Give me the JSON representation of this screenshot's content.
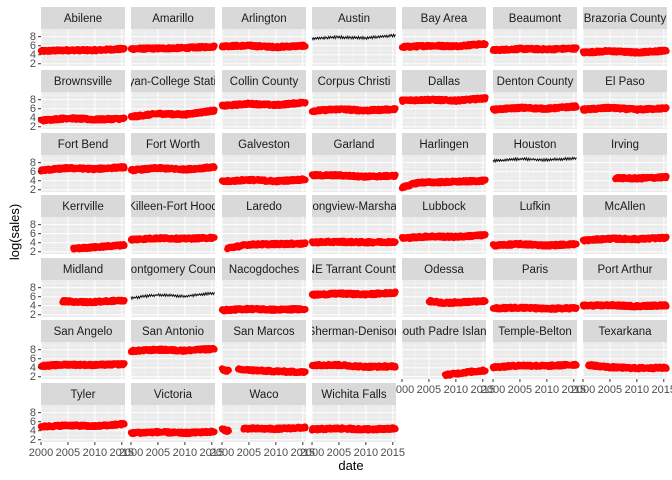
{
  "chart_data": {
    "type": "scatter",
    "facet_layout": "wrap",
    "ncol": 7,
    "xlabel": "date",
    "ylabel": "log(sales)",
    "xlim": [
      2000,
      2015.6
    ],
    "ylim": [
      1.5,
      9.7
    ],
    "x_ticks": [
      2000,
      2005,
      2010,
      2015
    ],
    "x_tick_labels": [
      "2000",
      "2005",
      "2010",
      "2015"
    ],
    "y_ticks": [
      2,
      4,
      6,
      8
    ],
    "y_tick_labels": [
      "2",
      "4",
      "6",
      "8"
    ],
    "grid": true,
    "legend": "none",
    "colors": {
      "points": "#ff0000",
      "line": "#000000",
      "panel_bg": "#ebebeb",
      "strip_bg": "#d9d9d9",
      "grid_major": "#ffffff"
    },
    "panels": [
      {
        "name": "Abilene",
        "style": "points",
        "x": [
          2000,
          2005,
          2010,
          2015.5
        ],
        "y": [
          4.8,
          5.0,
          5.0,
          5.3
        ]
      },
      {
        "name": "Amarillo",
        "style": "points",
        "x": [
          2000,
          2005,
          2010,
          2015.5
        ],
        "y": [
          5.3,
          5.4,
          5.5,
          5.8
        ]
      },
      {
        "name": "Arlington",
        "style": "points",
        "x": [
          2000,
          2005,
          2010,
          2015.5
        ],
        "y": [
          5.9,
          6.0,
          5.7,
          6.0
        ]
      },
      {
        "name": "Austin",
        "style": "line",
        "x": [
          2000,
          2005,
          2010,
          2015.5
        ],
        "y": [
          7.6,
          7.9,
          7.7,
          8.3
        ]
      },
      {
        "name": "Bay Area",
        "style": "points",
        "x": [
          2000,
          2005,
          2010,
          2015.5
        ],
        "y": [
          5.7,
          6.0,
          5.9,
          6.4
        ]
      },
      {
        "name": "Beaumont",
        "style": "points",
        "x": [
          2000,
          2005,
          2010,
          2015.5
        ],
        "y": [
          5.0,
          5.3,
          5.2,
          5.4
        ]
      },
      {
        "name": "Brazoria County",
        "style": "points",
        "x": [
          2000,
          2005,
          2010,
          2015.5
        ],
        "y": [
          4.5,
          4.8,
          4.5,
          4.9
        ]
      },
      {
        "name": "Brownsville",
        "style": "points",
        "x": [
          2000,
          2005,
          2010,
          2015.5
        ],
        "y": [
          3.4,
          3.9,
          3.6,
          3.8
        ]
      },
      {
        "name": "Bryan-College Station",
        "style": "points",
        "x": [
          2000,
          2005,
          2010,
          2015.5
        ],
        "y": [
          4.2,
          4.9,
          4.7,
          5.6
        ]
      },
      {
        "name": "Collin County",
        "style": "points",
        "x": [
          2000,
          2005,
          2010,
          2015.5
        ],
        "y": [
          6.6,
          7.1,
          6.8,
          7.4
        ]
      },
      {
        "name": "Corpus Christi",
        "style": "points",
        "x": [
          2000,
          2005,
          2010,
          2015.5
        ],
        "y": [
          5.5,
          5.9,
          5.6,
          5.9
        ]
      },
      {
        "name": "Dallas",
        "style": "points",
        "x": [
          2000,
          2005,
          2010,
          2015.5
        ],
        "y": [
          7.8,
          8.0,
          7.8,
          8.3
        ]
      },
      {
        "name": "Denton County",
        "style": "points",
        "x": [
          2000,
          2005,
          2010,
          2015.5
        ],
        "y": [
          5.8,
          6.2,
          6.0,
          6.5
        ]
      },
      {
        "name": "El Paso",
        "style": "points",
        "x": [
          2000,
          2005,
          2010,
          2015.5
        ],
        "y": [
          5.8,
          6.2,
          5.8,
          6.1
        ]
      },
      {
        "name": "Fort Bend",
        "style": "points",
        "x": [
          2000,
          2005,
          2010,
          2015.5
        ],
        "y": [
          6.3,
          6.8,
          6.6,
          7.0
        ]
      },
      {
        "name": "Fort Worth",
        "style": "points",
        "x": [
          2000,
          2005,
          2010,
          2015.5
        ],
        "y": [
          6.3,
          6.8,
          6.5,
          7.0
        ]
      },
      {
        "name": "Galveston",
        "style": "points",
        "x": [
          2000,
          2005,
          2010,
          2015.5
        ],
        "y": [
          3.8,
          4.2,
          3.9,
          4.3
        ]
      },
      {
        "name": "Garland",
        "style": "points",
        "x": [
          2000,
          2005,
          2010,
          2015.5
        ],
        "y": [
          5.2,
          5.2,
          4.9,
          5.1
        ]
      },
      {
        "name": "Harlingen",
        "style": "points",
        "x": [
          2000,
          2003,
          2008,
          2015.5
        ],
        "y": [
          2.5,
          3.6,
          3.7,
          4.0
        ]
      },
      {
        "name": "Houston",
        "style": "line",
        "x": [
          2000,
          2005,
          2010,
          2015.5
        ],
        "y": [
          8.4,
          8.8,
          8.6,
          9.0
        ]
      },
      {
        "name": "Irving",
        "style": "points",
        "x": [
          2006,
          2010,
          2015.5
        ],
        "y": [
          4.6,
          4.5,
          4.8
        ]
      },
      {
        "name": "Kerrville",
        "style": "points",
        "x": [
          2006,
          2010,
          2015.5
        ],
        "y": [
          2.7,
          3.0,
          3.5
        ]
      },
      {
        "name": "Killeen-Fort Hood",
        "style": "points",
        "x": [
          2000,
          2005,
          2010,
          2015.5
        ],
        "y": [
          4.7,
          5.0,
          4.9,
          5.1
        ]
      },
      {
        "name": "Laredo",
        "style": "points",
        "x": [
          2001,
          2005,
          2010,
          2015.5
        ],
        "y": [
          2.8,
          3.6,
          3.7,
          3.8
        ]
      },
      {
        "name": "Longview-Marshall",
        "style": "points",
        "x": [
          2000,
          2005,
          2010,
          2015.5
        ],
        "y": [
          4.1,
          4.2,
          4.1,
          4.2
        ]
      },
      {
        "name": "Lubbock",
        "style": "points",
        "x": [
          2000,
          2005,
          2010,
          2015.5
        ],
        "y": [
          5.0,
          5.4,
          5.3,
          5.7
        ]
      },
      {
        "name": "Lufkin",
        "style": "points",
        "x": [
          2000,
          2005,
          2010,
          2015.5
        ],
        "y": [
          3.4,
          3.7,
          3.4,
          3.7
        ]
      },
      {
        "name": "McAllen",
        "style": "points",
        "x": [
          2000,
          2005,
          2010,
          2015.5
        ],
        "y": [
          4.5,
          4.9,
          4.8,
          5.1
        ]
      },
      {
        "name": "Midland",
        "style": "points",
        "x": [
          2004,
          2008,
          2011,
          2015.5
        ],
        "y": [
          5.0,
          4.8,
          4.9,
          5.2
        ]
      },
      {
        "name": "Montgomery County",
        "style": "line",
        "x": [
          2000,
          2005,
          2010,
          2015.5
        ],
        "y": [
          5.7,
          6.4,
          6.1,
          6.8
        ]
      },
      {
        "name": "Nacogdoches",
        "style": "points",
        "x": [
          2000,
          2005,
          2010,
          2015.5
        ],
        "y": [
          3.0,
          3.3,
          3.1,
          3.3
        ]
      },
      {
        "name": "NE Tarrant County",
        "style": "points",
        "x": [
          2000,
          2005,
          2010,
          2015.5
        ],
        "y": [
          6.4,
          6.7,
          6.5,
          6.9
        ]
      },
      {
        "name": "Odessa",
        "style": "points",
        "x": [
          2005,
          2008,
          2011,
          2015.5
        ],
        "y": [
          5.0,
          4.6,
          4.8,
          5.0
        ]
      },
      {
        "name": "Paris",
        "style": "points",
        "x": [
          2000,
          2005,
          2010,
          2015.5
        ],
        "y": [
          3.4,
          3.6,
          3.3,
          3.5
        ]
      },
      {
        "name": "Port Arthur",
        "style": "points",
        "x": [
          2000,
          2005,
          2010,
          2015.5
        ],
        "y": [
          4.0,
          4.1,
          3.9,
          4.1
        ]
      },
      {
        "name": "San Angelo",
        "style": "points",
        "x": [
          2000,
          2005,
          2010,
          2015.5
        ],
        "y": [
          4.4,
          4.7,
          4.6,
          4.8
        ]
      },
      {
        "name": "San Antonio",
        "style": "points",
        "x": [
          2000,
          2005,
          2010,
          2015.5
        ],
        "y": [
          7.7,
          8.0,
          7.8,
          8.2
        ]
      },
      {
        "name": "San Marcos",
        "style": "points",
        "x": [
          2000,
          2001,
          2003,
          2008,
          2015.5
        ],
        "y": [
          3.6,
          3.3,
          3.6,
          3.3,
          3.0
        ]
      },
      {
        "name": "Sherman-Denison",
        "style": "points",
        "x": [
          2000,
          2005,
          2010,
          2015.5
        ],
        "y": [
          4.6,
          4.6,
          4.2,
          4.3
        ]
      },
      {
        "name": "South Padre Island",
        "style": "points",
        "x": [
          2008,
          2012,
          2015.5
        ],
        "y": [
          2.4,
          3.0,
          3.4
        ]
      },
      {
        "name": "Temple-Belton",
        "style": "points",
        "x": [
          2000,
          2005,
          2010,
          2015.5
        ],
        "y": [
          4.1,
          4.5,
          4.4,
          4.7
        ]
      },
      {
        "name": "Texarkana",
        "style": "points",
        "x": [
          2001,
          2005,
          2010,
          2015.5
        ],
        "y": [
          4.6,
          4.1,
          3.9,
          4.0
        ]
      },
      {
        "name": "Tyler",
        "style": "points",
        "x": [
          2000,
          2005,
          2010,
          2015.5
        ],
        "y": [
          4.9,
          5.2,
          5.0,
          5.5
        ]
      },
      {
        "name": "Victoria",
        "style": "points",
        "x": [
          2000,
          2005,
          2010,
          2015.5
        ],
        "y": [
          3.5,
          3.7,
          3.5,
          3.8
        ]
      },
      {
        "name": "Waco",
        "style": "points",
        "x": [
          2000,
          2001,
          2004,
          2010,
          2015.5
        ],
        "y": [
          4.3,
          4.0,
          4.5,
          4.4,
          4.7
        ]
      },
      {
        "name": "Wichita Falls",
        "style": "points",
        "x": [
          2000,
          2005,
          2010,
          2015.5
        ],
        "y": [
          4.3,
          4.5,
          4.3,
          4.5
        ]
      }
    ]
  }
}
